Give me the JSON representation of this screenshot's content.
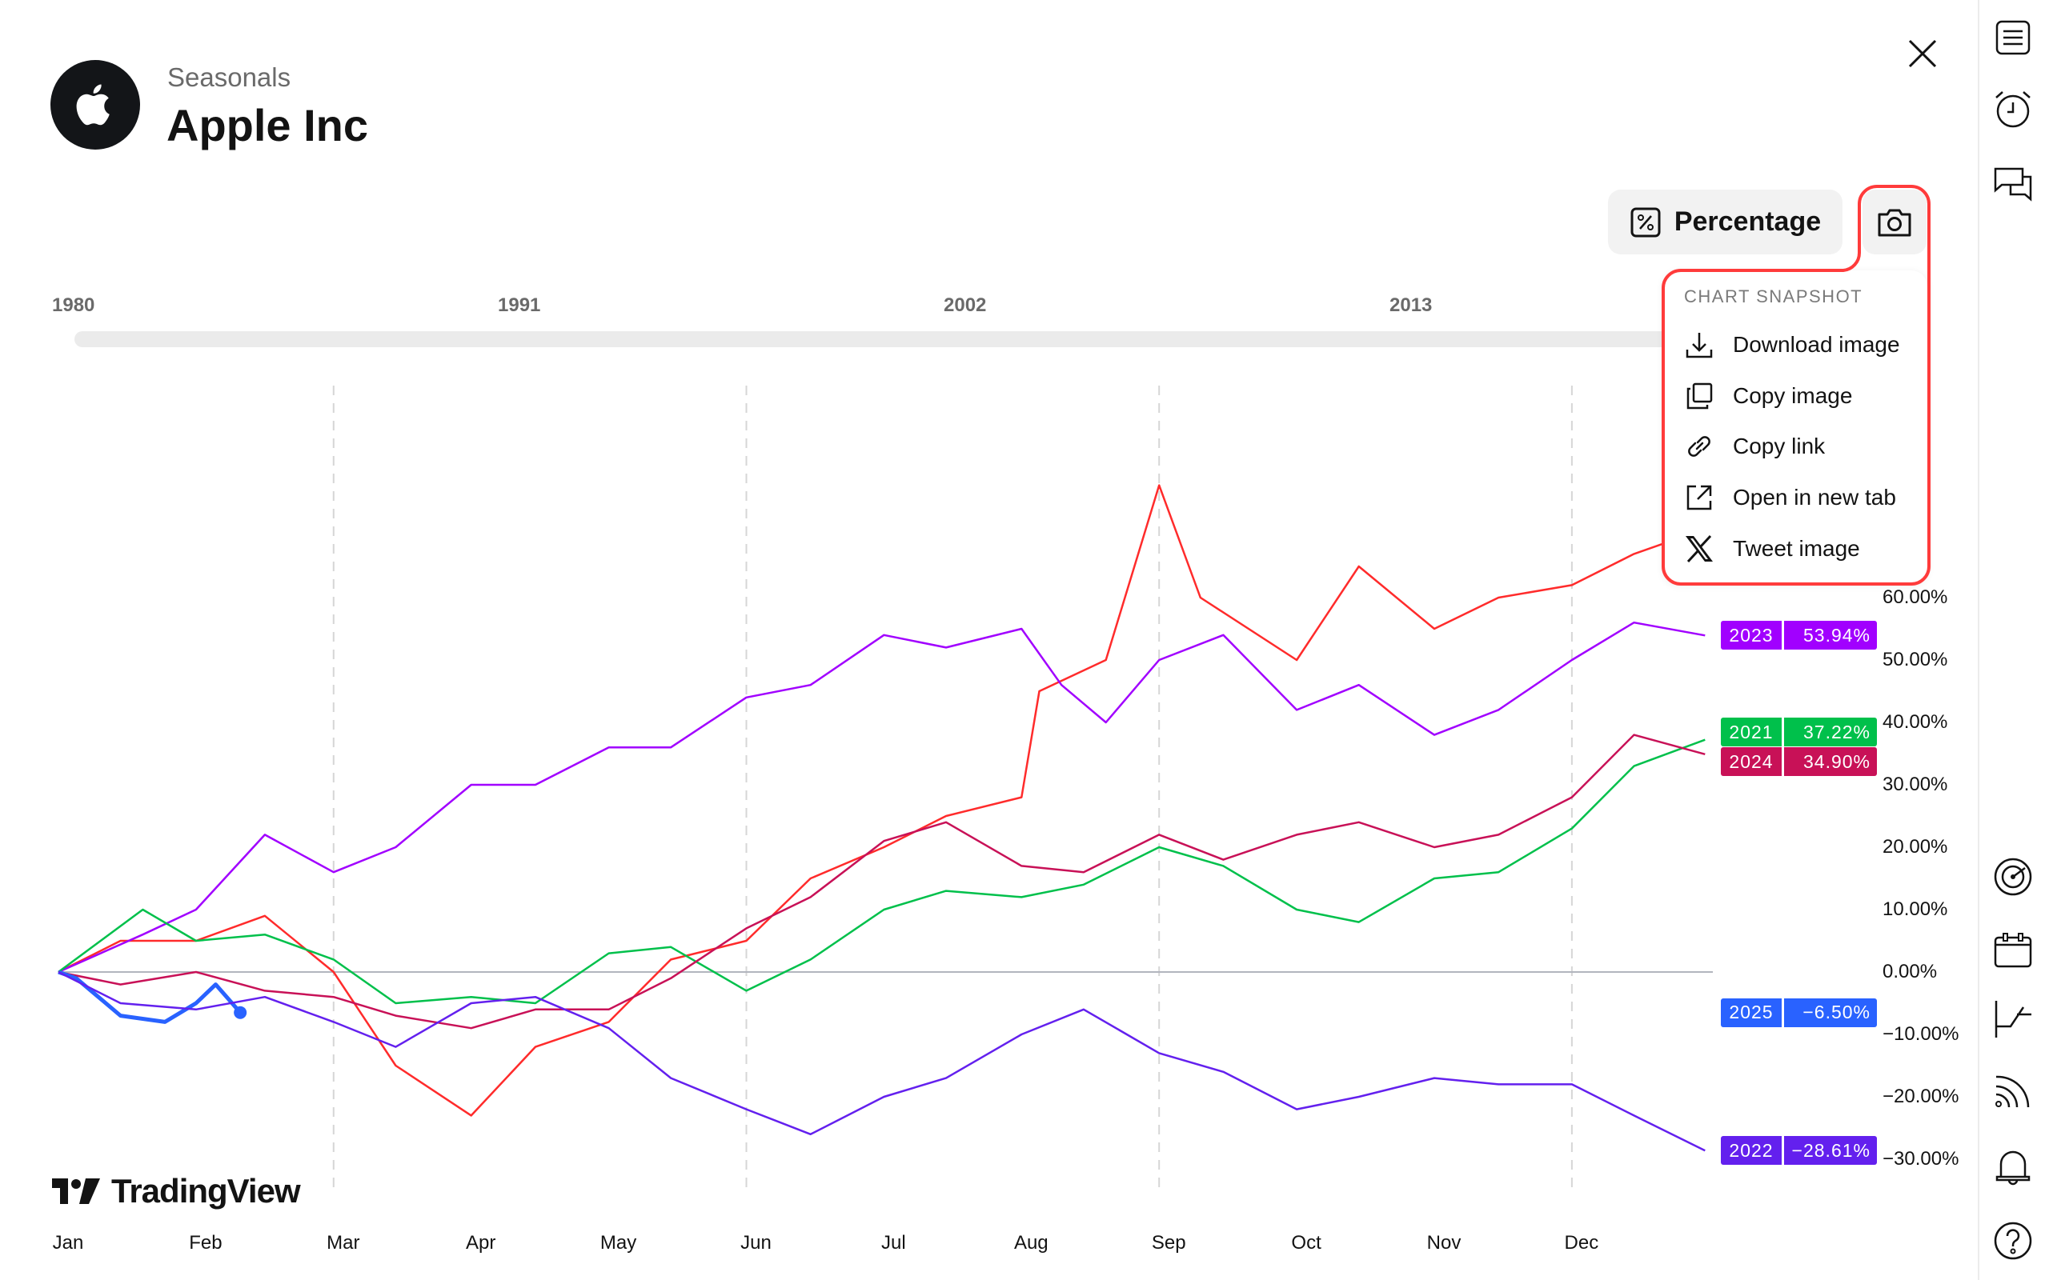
{
  "header": {
    "subtitle": "Seasonals",
    "title": "Apple Inc",
    "logo": "apple-logo"
  },
  "toolbar": {
    "percentage_label": "Percentage",
    "percent_icon": "percent-icon",
    "camera_icon": "camera-icon",
    "close_icon": "close-icon"
  },
  "snapshot_menu": {
    "heading": "CHART SNAPSHOT",
    "highlight_color": "#ff3b3b",
    "items": [
      {
        "label": "Download image",
        "icon": "download-icon"
      },
      {
        "label": "Copy image",
        "icon": "copy-icon"
      },
      {
        "label": "Copy link",
        "icon": "link-icon"
      },
      {
        "label": "Open in new tab",
        "icon": "external-link-icon"
      },
      {
        "label": "Tweet image",
        "icon": "x-logo-icon"
      }
    ]
  },
  "timeline": {
    "years": [
      "1980",
      "1991",
      "2002",
      "2013"
    ]
  },
  "branding": {
    "name": "TradingView"
  },
  "sidebar": {
    "icons": [
      "watchlist-icon",
      "alarm-clock-icon",
      "chat-icon",
      "radar-icon",
      "calendar-icon",
      "chart-pattern-icon",
      "broadcast-icon",
      "bell-icon",
      "help-icon"
    ]
  },
  "chart_data": {
    "type": "line",
    "x_ticks": [
      "Jan",
      "Feb",
      "Mar",
      "Apr",
      "May",
      "Jun",
      "Jul",
      "Aug",
      "Sep",
      "Oct",
      "Nov",
      "Dec"
    ],
    "y_ticks": [
      "60.00%",
      "50.00%",
      "40.00%",
      "30.00%",
      "20.00%",
      "10.00%",
      "0.00%",
      "−10.00%",
      "−20.00%",
      "−30.00%"
    ],
    "ylim": [
      -33,
      80
    ],
    "grid": "dashed vertical at Mar, Jun, Sep, Dec; zero line",
    "series": [
      {
        "name": "",
        "color": "#ff2b2b",
        "points": [
          [
            "01-01",
            0
          ],
          [
            "01-15",
            5
          ],
          [
            "02-01",
            5
          ],
          [
            "02-15",
            9
          ],
          [
            "03-01",
            0
          ],
          [
            "03-15",
            -15
          ],
          [
            "04-01",
            -23
          ],
          [
            "04-15",
            -12
          ],
          [
            "05-01",
            -8
          ],
          [
            "05-15",
            2
          ],
          [
            "06-01",
            5
          ],
          [
            "06-15",
            15
          ],
          [
            "07-01",
            20
          ],
          [
            "07-15",
            25
          ],
          [
            "08-01",
            28
          ],
          [
            "08-05",
            45
          ],
          [
            "08-20",
            50
          ],
          [
            "09-01",
            78
          ],
          [
            "09-10",
            60
          ],
          [
            "10-01",
            50
          ],
          [
            "10-15",
            65
          ],
          [
            "11-01",
            55
          ],
          [
            "11-15",
            60
          ],
          [
            "12-01",
            62
          ],
          [
            "12-15",
            67
          ],
          [
            "12-31",
            71
          ]
        ]
      },
      {
        "name": "2023",
        "value": "53.94%",
        "color": "#a100ff",
        "points": [
          [
            "01-01",
            0
          ],
          [
            "01-20",
            6
          ],
          [
            "02-01",
            10
          ],
          [
            "02-15",
            22
          ],
          [
            "03-01",
            16
          ],
          [
            "03-15",
            20
          ],
          [
            "04-01",
            30
          ],
          [
            "04-15",
            30
          ],
          [
            "05-01",
            36
          ],
          [
            "05-15",
            36
          ],
          [
            "06-01",
            44
          ],
          [
            "06-15",
            46
          ],
          [
            "07-01",
            54
          ],
          [
            "07-15",
            52
          ],
          [
            "08-01",
            55
          ],
          [
            "08-10",
            46
          ],
          [
            "08-20",
            40
          ],
          [
            "09-01",
            50
          ],
          [
            "09-15",
            54
          ],
          [
            "10-01",
            42
          ],
          [
            "10-15",
            46
          ],
          [
            "11-01",
            38
          ],
          [
            "11-15",
            42
          ],
          [
            "12-01",
            50
          ],
          [
            "12-15",
            56
          ],
          [
            "12-31",
            53.94
          ]
        ]
      },
      {
        "name": "2021",
        "value": "37.22%",
        "color": "#00c04b",
        "points": [
          [
            "01-01",
            0
          ],
          [
            "01-20",
            10
          ],
          [
            "02-01",
            5
          ],
          [
            "02-15",
            6
          ],
          [
            "03-01",
            2
          ],
          [
            "03-15",
            -5
          ],
          [
            "04-01",
            -4
          ],
          [
            "04-15",
            -5
          ],
          [
            "05-01",
            3
          ],
          [
            "05-15",
            4
          ],
          [
            "06-01",
            -3
          ],
          [
            "06-15",
            2
          ],
          [
            "07-01",
            10
          ],
          [
            "07-15",
            13
          ],
          [
            "08-01",
            12
          ],
          [
            "08-15",
            14
          ],
          [
            "09-01",
            20
          ],
          [
            "09-15",
            17
          ],
          [
            "10-01",
            10
          ],
          [
            "10-15",
            8
          ],
          [
            "11-01",
            15
          ],
          [
            "11-15",
            16
          ],
          [
            "12-01",
            23
          ],
          [
            "12-15",
            33
          ],
          [
            "12-31",
            37.22
          ]
        ]
      },
      {
        "name": "2024",
        "value": "34.90%",
        "color": "#c81157",
        "points": [
          [
            "01-01",
            0
          ],
          [
            "01-15",
            -2
          ],
          [
            "02-01",
            0
          ],
          [
            "02-15",
            -3
          ],
          [
            "03-01",
            -4
          ],
          [
            "03-15",
            -7
          ],
          [
            "04-01",
            -9
          ],
          [
            "04-15",
            -6
          ],
          [
            "05-01",
            -6
          ],
          [
            "05-15",
            -1
          ],
          [
            "06-01",
            7
          ],
          [
            "06-15",
            12
          ],
          [
            "07-01",
            21
          ],
          [
            "07-15",
            24
          ],
          [
            "08-01",
            17
          ],
          [
            "08-15",
            16
          ],
          [
            "09-01",
            22
          ],
          [
            "09-15",
            18
          ],
          [
            "10-01",
            22
          ],
          [
            "10-15",
            24
          ],
          [
            "11-01",
            20
          ],
          [
            "11-15",
            22
          ],
          [
            "12-01",
            28
          ],
          [
            "12-15",
            38
          ],
          [
            "12-31",
            34.9
          ]
        ]
      },
      {
        "name": "2025",
        "value": "−6.50%",
        "color": "#2962ff",
        "points": [
          [
            "01-01",
            0
          ],
          [
            "01-05",
            -1
          ],
          [
            "01-10",
            -4
          ],
          [
            "01-15",
            -7
          ],
          [
            "01-25",
            -8
          ],
          [
            "02-01",
            -5
          ],
          [
            "02-05",
            -2
          ],
          [
            "02-10",
            -6.5
          ]
        ]
      },
      {
        "name": "2022",
        "value": "−28.61%",
        "color": "#6320ee",
        "points": [
          [
            "01-01",
            0
          ],
          [
            "01-15",
            -5
          ],
          [
            "02-01",
            -6
          ],
          [
            "02-15",
            -4
          ],
          [
            "03-01",
            -8
          ],
          [
            "03-15",
            -12
          ],
          [
            "04-01",
            -5
          ],
          [
            "04-15",
            -4
          ],
          [
            "05-01",
            -9
          ],
          [
            "05-15",
            -17
          ],
          [
            "06-01",
            -22
          ],
          [
            "06-15",
            -26
          ],
          [
            "07-01",
            -20
          ],
          [
            "07-15",
            -17
          ],
          [
            "08-01",
            -10
          ],
          [
            "08-15",
            -6
          ],
          [
            "09-01",
            -13
          ],
          [
            "09-15",
            -16
          ],
          [
            "10-01",
            -22
          ],
          [
            "10-15",
            -20
          ],
          [
            "11-01",
            -17
          ],
          [
            "11-15",
            -18
          ],
          [
            "12-01",
            -18
          ],
          [
            "12-15",
            -23
          ],
          [
            "12-31",
            -28.61
          ]
        ]
      }
    ]
  }
}
